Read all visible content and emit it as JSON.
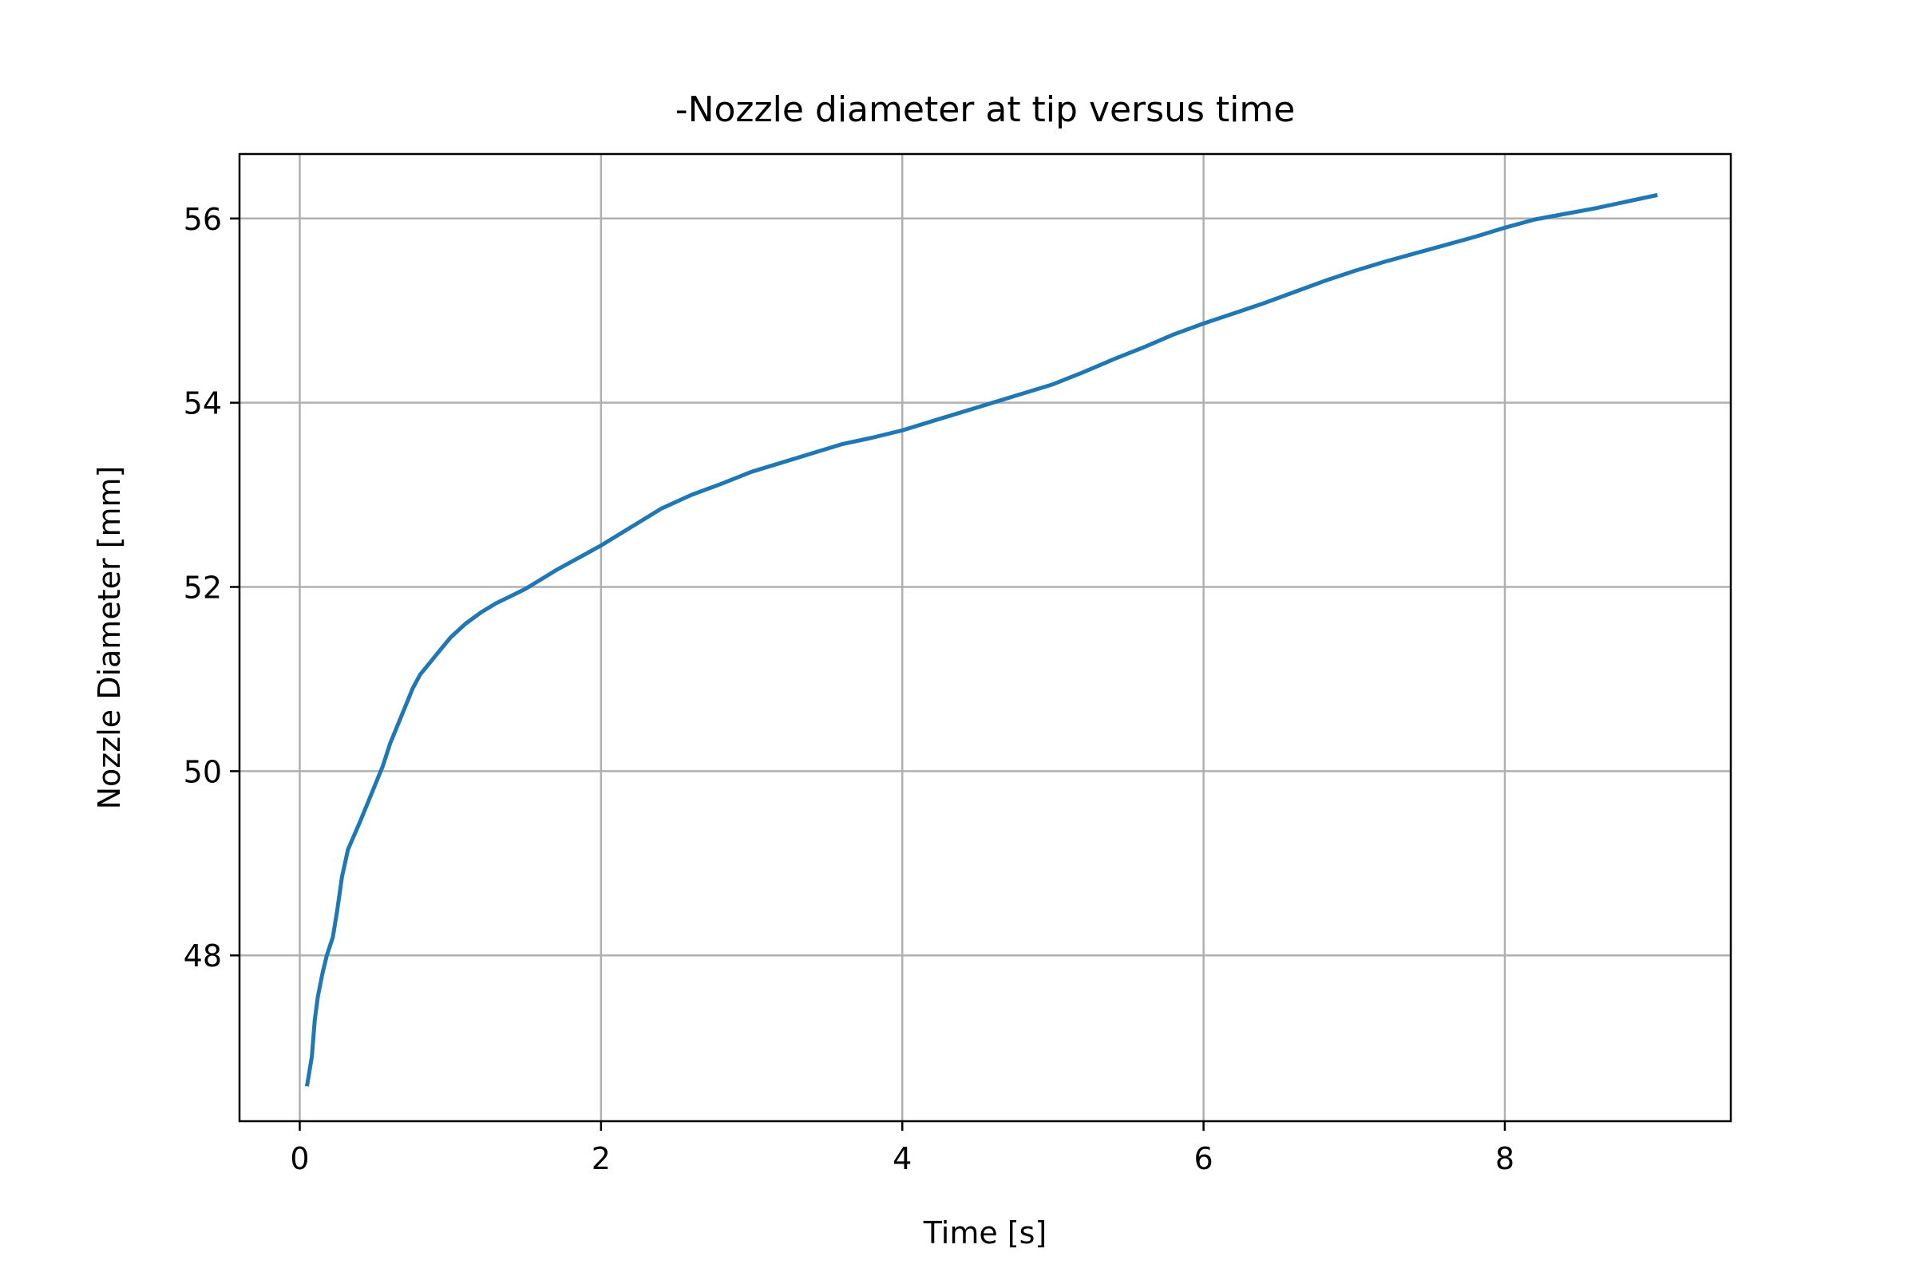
{
  "chart_data": {
    "type": "line",
    "title": "-Nozzle diameter at tip versus time",
    "xlabel": "Time [s]",
    "ylabel": "Nozzle Diameter [mm]",
    "xlim": [
      -0.4,
      9.5
    ],
    "ylim": [
      46.2,
      56.7
    ],
    "xticks": [
      0,
      2,
      4,
      6,
      8
    ],
    "yticks": [
      48,
      50,
      52,
      54,
      56
    ],
    "xtick_labels": [
      "0",
      "2",
      "4",
      "6",
      "8"
    ],
    "ytick_labels": [
      "48",
      "50",
      "52",
      "54",
      "56"
    ],
    "grid": true,
    "legend": "none",
    "series": [
      {
        "color": "#1f77b4",
        "x": [
          0.05,
          0.08,
          0.1,
          0.12,
          0.15,
          0.18,
          0.22,
          0.25,
          0.28,
          0.32,
          0.36,
          0.4,
          0.45,
          0.5,
          0.55,
          0.6,
          0.65,
          0.7,
          0.75,
          0.8,
          0.85,
          0.9,
          0.95,
          1.0,
          1.1,
          1.2,
          1.3,
          1.4,
          1.5,
          1.6,
          1.7,
          1.8,
          1.9,
          2.0,
          2.2,
          2.4,
          2.6,
          2.8,
          3.0,
          3.2,
          3.4,
          3.6,
          3.8,
          4.0,
          4.2,
          4.4,
          4.6,
          4.8,
          5.0,
          5.2,
          5.4,
          5.6,
          5.8,
          6.0,
          6.2,
          6.4,
          6.6,
          6.8,
          7.0,
          7.2,
          7.4,
          7.6,
          7.8,
          8.0,
          8.2,
          8.4,
          8.6,
          8.8,
          9.0
        ],
        "y": [
          46.6,
          46.9,
          47.3,
          47.55,
          47.8,
          48.0,
          48.2,
          48.5,
          48.85,
          49.15,
          49.3,
          49.45,
          49.65,
          49.85,
          50.05,
          50.3,
          50.5,
          50.7,
          50.9,
          51.05,
          51.15,
          51.25,
          51.35,
          51.45,
          51.6,
          51.72,
          51.82,
          51.9,
          51.98,
          52.08,
          52.18,
          52.27,
          52.36,
          52.45,
          52.65,
          52.85,
          53.0,
          53.12,
          53.25,
          53.35,
          53.45,
          53.55,
          53.62,
          53.7,
          53.8,
          53.9,
          54.0,
          54.1,
          54.2,
          54.33,
          54.47,
          54.6,
          54.74,
          54.86,
          54.97,
          55.08,
          55.2,
          55.32,
          55.43,
          55.53,
          55.62,
          55.71,
          55.8,
          55.9,
          55.99,
          56.05,
          56.11,
          56.18,
          56.25
        ]
      }
    ]
  }
}
